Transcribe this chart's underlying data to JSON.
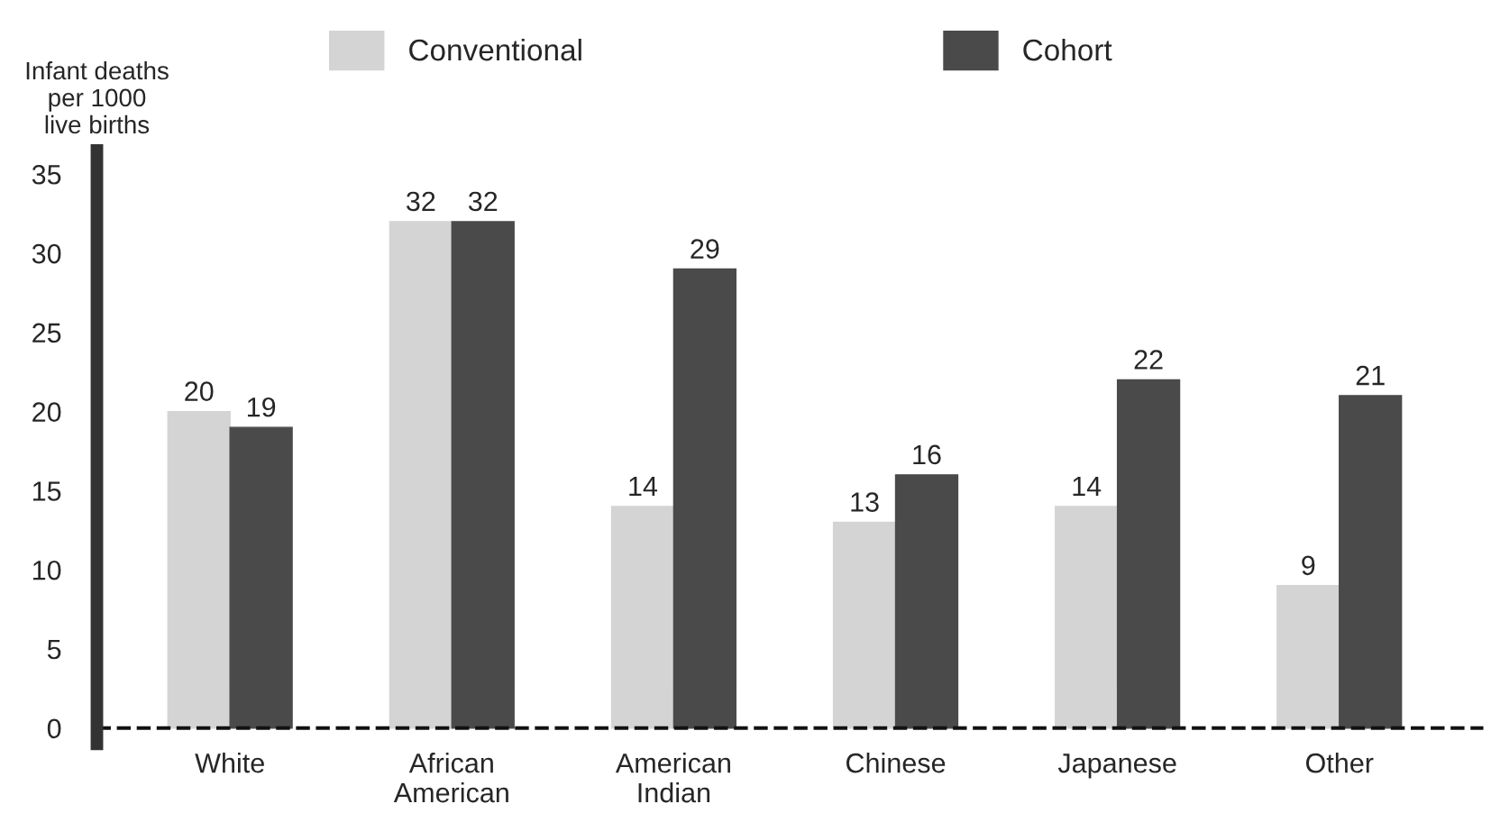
{
  "chart_data": {
    "type": "bar",
    "ylabel": "Infant deaths\nper 1000\nlive births",
    "categories": [
      "White",
      "African\nAmerican",
      "American\nIndian",
      "Chinese",
      "Japanese",
      "Other"
    ],
    "series": [
      {
        "name": "Conventional",
        "color": "#d4d4d4",
        "values": [
          20,
          32,
          14,
          13,
          14,
          9
        ]
      },
      {
        "name": "Cohort",
        "color": "#4a4a4a",
        "values": [
          19,
          32,
          29,
          16,
          22,
          21
        ]
      }
    ],
    "ylim": [
      -1,
      36.5
    ],
    "yticks": [
      0,
      5,
      10,
      15,
      20,
      25,
      30,
      35
    ],
    "ref_lines": [
      {
        "axis": "y",
        "value": 0,
        "line_style": "dashed",
        "color": "#111111"
      }
    ],
    "data_labels": true,
    "legend": "top",
    "grid": false
  }
}
